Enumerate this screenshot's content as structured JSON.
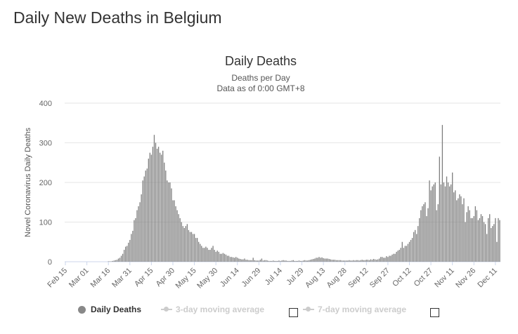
{
  "page": {
    "heading": "Daily New Deaths in Belgium"
  },
  "legend": {
    "items": [
      "Daily Deaths",
      "3-day moving average",
      "7-day moving average"
    ]
  },
  "colors": {
    "bar": "#7f7f7f",
    "grid": "#e6e6e6",
    "axis_text": "#666666",
    "legend_inactive": "#cccccc"
  },
  "chart_data": {
    "type": "bar",
    "title": "Daily Deaths",
    "subtitle": [
      "Deaths per Day",
      "Data as of 0:00 GMT+8"
    ],
    "ylabel": "Novel Coronavirus Daily Deaths",
    "xlabel": "",
    "ylim": [
      0,
      400
    ],
    "yticks": [
      0,
      100,
      200,
      300,
      400
    ],
    "grid": true,
    "legend_position": "bottom",
    "x_start": "2020-02-15",
    "xticks": [
      "Feb 15",
      "Mar 01",
      "Mar 16",
      "Mar 31",
      "Apr 15",
      "Apr 30",
      "May 15",
      "May 30",
      "Jun 14",
      "Jun 29",
      "Jul 14",
      "Jul 29",
      "Aug 13",
      "Aug 28",
      "Sep 12",
      "Sep 27",
      "Oct 12",
      "Oct 27",
      "Nov 11",
      "Nov 26",
      "Dec 11"
    ],
    "series": [
      {
        "name": "Daily Deaths",
        "values": [
          0,
          0,
          0,
          0,
          0,
          0,
          0,
          0,
          0,
          0,
          0,
          0,
          0,
          0,
          0,
          0,
          0,
          0,
          0,
          0,
          0,
          0,
          0,
          0,
          0,
          0,
          0,
          0,
          0,
          0,
          1,
          1,
          1,
          2,
          3,
          4,
          5,
          8,
          10,
          15,
          20,
          30,
          38,
          40,
          48,
          55,
          70,
          78,
          105,
          110,
          130,
          140,
          150,
          170,
          205,
          215,
          230,
          235,
          260,
          275,
          270,
          290,
          320,
          300,
          285,
          290,
          275,
          270,
          280,
          250,
          230,
          205,
          200,
          200,
          185,
          155,
          155,
          140,
          130,
          120,
          110,
          100,
          90,
          85,
          90,
          95,
          80,
          75,
          75,
          70,
          70,
          60,
          60,
          50,
          45,
          40,
          35,
          35,
          38,
          35,
          30,
          30,
          35,
          40,
          30,
          25,
          28,
          25,
          20,
          20,
          22,
          20,
          18,
          15,
          15,
          12,
          12,
          11,
          10,
          12,
          10,
          8,
          7,
          6,
          6,
          8,
          5,
          5,
          4,
          4,
          4,
          10,
          4,
          3,
          3,
          3,
          5,
          8,
          3,
          4,
          4,
          3,
          2,
          2,
          2,
          3,
          2,
          2,
          2,
          3,
          2,
          3,
          4,
          3,
          3,
          2,
          2,
          2,
          3,
          4,
          2,
          2,
          2,
          3,
          2,
          2,
          3,
          4,
          3,
          3,
          4,
          5,
          6,
          7,
          8,
          10,
          10,
          12,
          10,
          11,
          9,
          8,
          8,
          8,
          7,
          6,
          5,
          5,
          5,
          4,
          4,
          4,
          4,
          3,
          3,
          3,
          3,
          3,
          4,
          3,
          3,
          4,
          3,
          4,
          4,
          3,
          4,
          5,
          4,
          4,
          5,
          5,
          4,
          6,
          5,
          7,
          6,
          5,
          6,
          8,
          12,
          12,
          10,
          10,
          14,
          12,
          15,
          15,
          18,
          20,
          20,
          25,
          28,
          30,
          35,
          50,
          35,
          40,
          40,
          45,
          50,
          55,
          60,
          75,
          80,
          70,
          90,
          110,
          130,
          140,
          145,
          150,
          115,
          135,
          205,
          180,
          190,
          195,
          200,
          130,
          145,
          265,
          195,
          345,
          200,
          190,
          215,
          200,
          190,
          195,
          225,
          175,
          180,
          155,
          160,
          170,
          165,
          145,
          160,
          100,
          125,
          140,
          130,
          110,
          110,
          115,
          140,
          130,
          105,
          110,
          120,
          115,
          100,
          95,
          70,
          110,
          120,
          85,
          90,
          95,
          110,
          50,
          110,
          105
        ]
      }
    ]
  }
}
